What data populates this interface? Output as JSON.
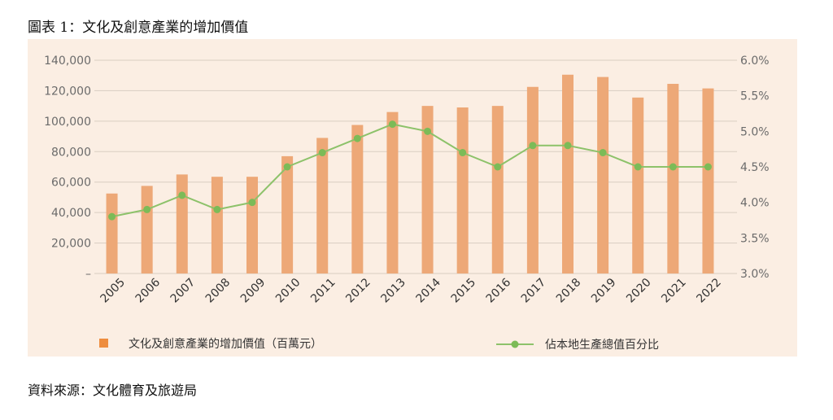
{
  "title": "圖表 1：文化及創意產業的增加價值",
  "source": "資料來源：文化體育及旅遊局",
  "colors": {
    "bar": "#eda877",
    "line": "#8dc26a",
    "marker": "#7cbb57",
    "legend_bar": "#ee8d3f",
    "panel": "#fbeee3"
  },
  "chart_data": {
    "type": "bar",
    "categories": [
      "2005",
      "2006",
      "2007",
      "2008",
      "2009",
      "2010",
      "2011",
      "2012",
      "2013",
      "2014",
      "2015",
      "2016",
      "2017",
      "2018",
      "2019",
      "2020",
      "2021",
      "2022"
    ],
    "series": [
      {
        "name": "文化及創意產業的增加價值（百萬元）",
        "type": "bar",
        "axis": "left",
        "values": [
          52500,
          57500,
          65000,
          63500,
          63500,
          77000,
          89000,
          97500,
          106000,
          110000,
          109000,
          110000,
          122500,
          130500,
          129000,
          115500,
          124500,
          121500
        ]
      },
      {
        "name": "佔本地生產總值百分比",
        "type": "line",
        "axis": "right",
        "values": [
          3.8,
          3.9,
          4.1,
          3.9,
          4.0,
          4.5,
          4.7,
          4.9,
          5.1,
          5.0,
          4.7,
          4.5,
          4.8,
          4.8,
          4.7,
          4.5,
          4.5,
          4.5
        ]
      }
    ],
    "y_left": {
      "ylim": [
        0,
        140000
      ],
      "ticks": [
        "–",
        "20,000",
        "40,000",
        "60,000",
        "80,000",
        "100,000",
        "120,000",
        "140,000"
      ]
    },
    "y_right": {
      "ylim": [
        3.0,
        6.0
      ],
      "ticks": [
        "3.0%",
        "3.5%",
        "4.0%",
        "4.5%",
        "5.0%",
        "5.5%",
        "6.0%"
      ]
    },
    "grid": "horizontal",
    "legend_position": "bottom"
  }
}
